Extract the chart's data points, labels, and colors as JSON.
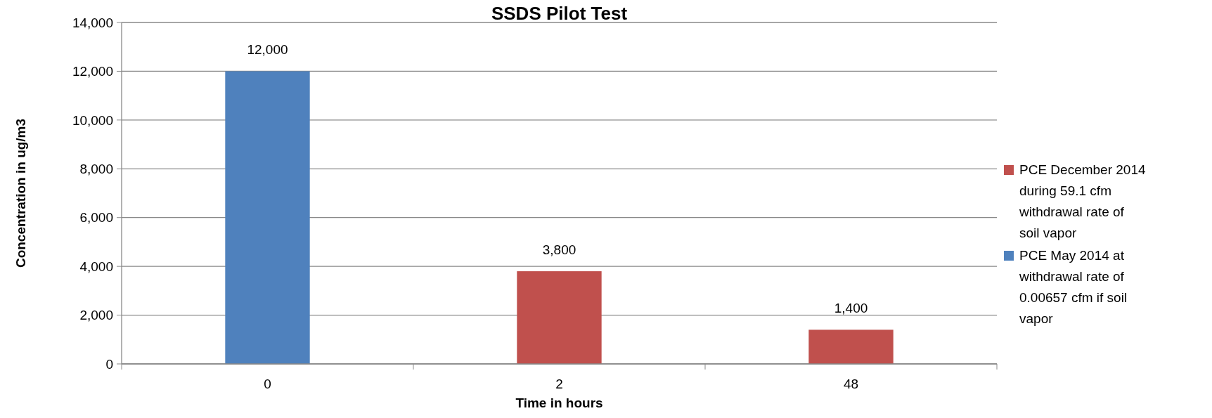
{
  "chart_data": {
    "type": "bar",
    "title": "SSDS Pilot Test",
    "xlabel": "Time in hours",
    "ylabel": "Concentration in ug/m3",
    "categories": [
      "0",
      "2",
      "48"
    ],
    "series": [
      {
        "name": "PCE December 2014 during 59.1 cfm withdrawal rate of soil vapor",
        "color": "#c0504d",
        "values": [
          null,
          3800,
          1400
        ],
        "value_labels": [
          null,
          "3,800",
          "1,400"
        ]
      },
      {
        "name": "PCE May 2014 at withdrawal rate of 0.00657 cfm if soil vapor",
        "color": "#4f81bd",
        "values": [
          12000,
          null,
          null
        ],
        "value_labels": [
          "12,000",
          null,
          null
        ]
      }
    ],
    "ylim": [
      0,
      14000
    ],
    "yticks": [
      {
        "value": 0,
        "label": "0"
      },
      {
        "value": 2000,
        "label": "2,000"
      },
      {
        "value": 4000,
        "label": "4,000"
      },
      {
        "value": 6000,
        "label": "6,000"
      },
      {
        "value": 8000,
        "label": "8,000"
      },
      {
        "value": 10000,
        "label": "10,000"
      },
      {
        "value": 12000,
        "label": "12,000"
      },
      {
        "value": 14000,
        "label": "14,000"
      }
    ],
    "grid": "y",
    "legend": "right"
  }
}
